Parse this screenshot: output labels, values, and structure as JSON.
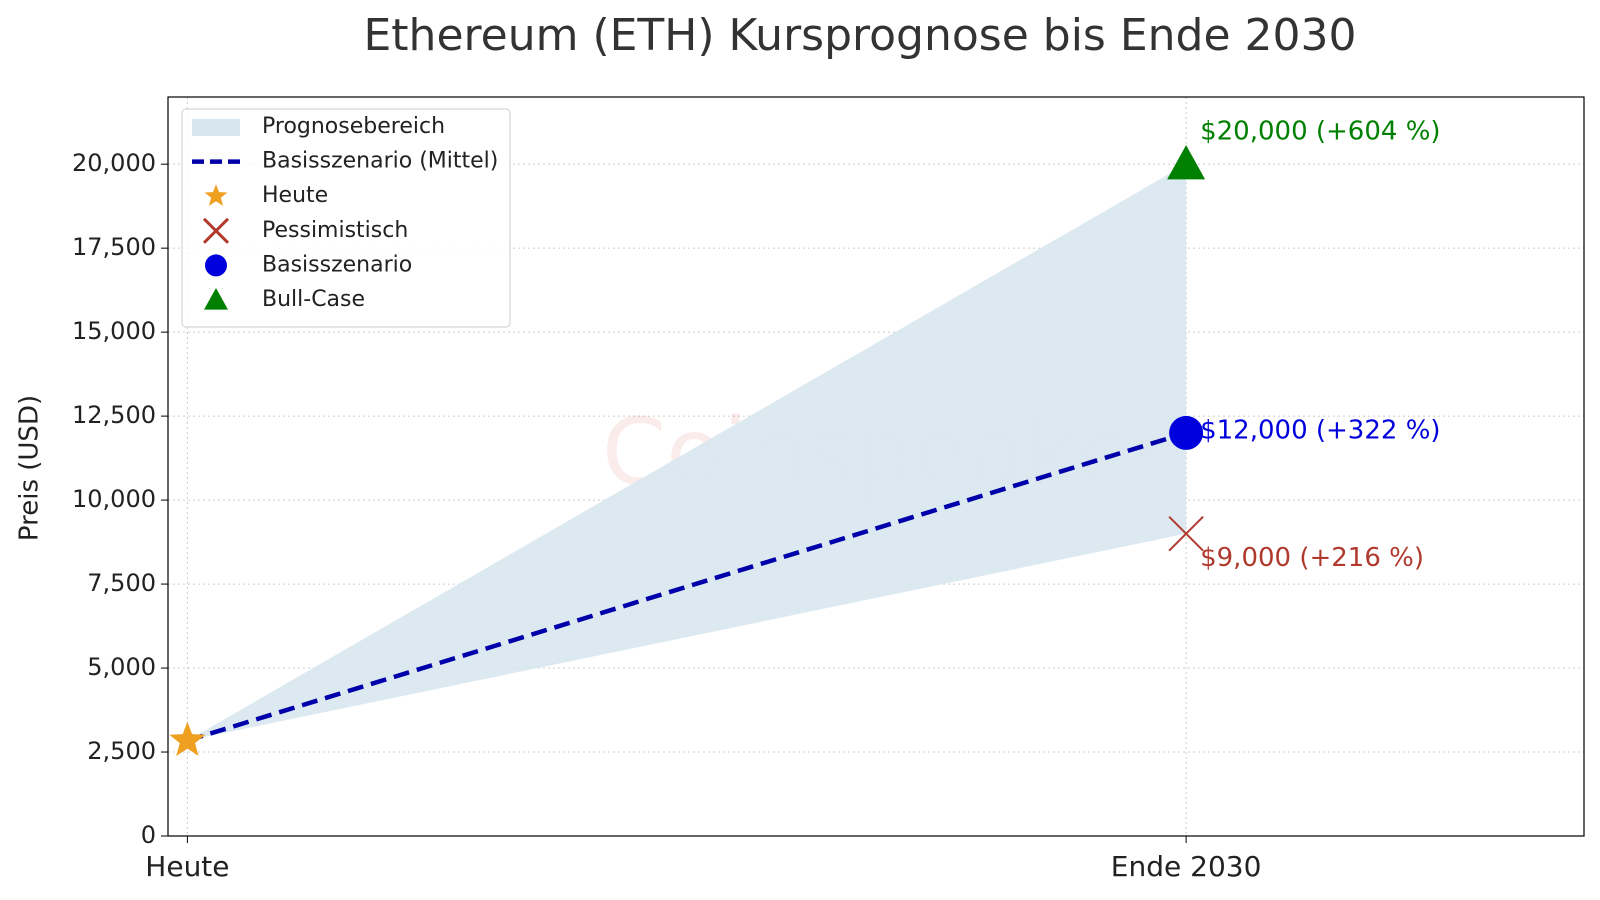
{
  "chart_data": {
    "type": "line",
    "title": "Ethereum (ETH) Kursprognose bis Ende 2030",
    "ylabel": "Preis (USD)",
    "watermark": "Coinspeaker",
    "categories": [
      "Heute",
      "Ende 2030"
    ],
    "ylim": [
      0,
      22000
    ],
    "yticks": [
      0,
      {
        "value": 2500,
        "label": "2,500"
      },
      {
        "value": 5000,
        "label": "5,000"
      },
      {
        "value": 7500,
        "label": "7,500"
      },
      {
        "value": 10000,
        "label": "10,000"
      },
      {
        "value": 12500,
        "label": "12,500"
      },
      {
        "value": 15000,
        "label": "15,000"
      },
      {
        "value": 17500,
        "label": "17,500"
      },
      {
        "value": 20000,
        "label": "20,000"
      }
    ],
    "grid": true,
    "legend": "upper left",
    "series": [
      {
        "name": "Prognosebereich",
        "kind": "area",
        "color": "#d8e7ef",
        "values": [
          2840,
          20000
        ],
        "lower": [
          2840,
          9000
        ]
      },
      {
        "name": "Basisszenario (Mittel)",
        "kind": "dashed-line",
        "color": "#0000aa",
        "values": [
          2840,
          12000
        ]
      },
      {
        "name": "Heute",
        "kind": "marker",
        "marker": "star",
        "color": "#f0a020",
        "values": [
          2840,
          null
        ]
      },
      {
        "name": "Pessimistisch",
        "kind": "marker",
        "marker": "x",
        "color": "#b03a2e",
        "values": [
          null,
          9000
        ],
        "value_labels": [
          null,
          "$9,000 (+216 %)"
        ]
      },
      {
        "name": "Basisszenario",
        "kind": "marker",
        "marker": "circle",
        "color": "#0000dd",
        "values": [
          null,
          12000
        ],
        "value_labels": [
          null,
          "$12,000 (+322 %)"
        ]
      },
      {
        "name": "Bull-Case",
        "kind": "marker",
        "marker": "triangle",
        "color": "#008000",
        "values": [
          null,
          20000
        ],
        "value_labels": [
          null,
          "$20,000 (+604 %)"
        ]
      }
    ]
  }
}
